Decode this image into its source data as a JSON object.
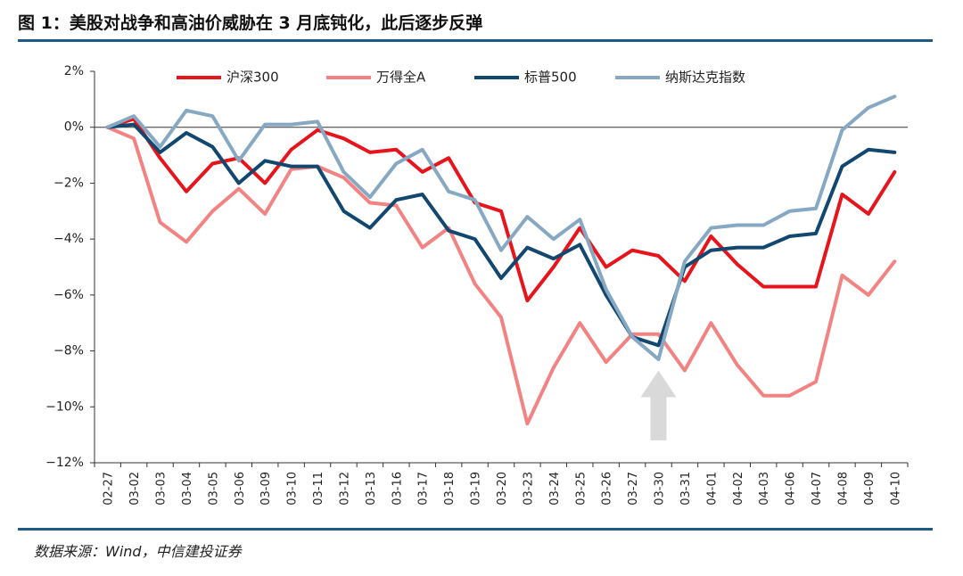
{
  "title": "图 1：美股对战争和高油价威胁在 3 月底钝化，此后逐步反弹",
  "source": "数据来源：Wind，中信建投证券",
  "colors": {
    "rule": "#1f5a87",
    "arrow": "#d9d9d9"
  },
  "chart_data": {
    "type": "line",
    "title": "图 1：美股对战争和高油价威胁在 3 月底钝化，此后逐步反弹",
    "xlabel": "",
    "ylabel": "",
    "ylim": [
      -12,
      2
    ],
    "yticks": [
      2,
      0,
      -2,
      -4,
      -6,
      -8,
      -10,
      -12
    ],
    "ytick_labels": [
      "2%",
      "0%",
      "−2%",
      "−4%",
      "−6%",
      "−8%",
      "−10%",
      "−12%"
    ],
    "legend_position": "top",
    "grid": false,
    "categories": [
      "02-27",
      "03-02",
      "03-03",
      "03-04",
      "03-05",
      "03-06",
      "03-09",
      "03-10",
      "03-11",
      "03-12",
      "03-13",
      "03-16",
      "03-17",
      "03-18",
      "03-19",
      "03-20",
      "03-23",
      "03-24",
      "03-25",
      "03-26",
      "03-27",
      "03-30",
      "03-31",
      "04-01",
      "04-02",
      "04-03",
      "04-06",
      "04-07",
      "04-08",
      "04-09",
      "04-10"
    ],
    "series": [
      {
        "name": "沪深300",
        "color": "#e8141b",
        "width": 4,
        "values": [
          0,
          0.3,
          -1.1,
          -2.3,
          -1.3,
          -1.1,
          -2.0,
          -0.8,
          -0.1,
          -0.4,
          -0.9,
          -0.8,
          -1.6,
          -1.1,
          -2.7,
          -3.0,
          -6.2,
          -5.0,
          -3.6,
          -5.0,
          -4.4,
          -4.6,
          -5.5,
          -3.9,
          -4.9,
          -5.7,
          -5.7,
          -5.7,
          -2.4,
          -3.1,
          -1.6
        ]
      },
      {
        "name": "万得全A",
        "color": "#f38383",
        "width": 4,
        "values": [
          0,
          -0.4,
          -3.4,
          -4.1,
          -3.0,
          -2.2,
          -3.1,
          -1.5,
          -1.4,
          -1.8,
          -2.7,
          -2.8,
          -4.3,
          -3.6,
          -5.6,
          -6.8,
          -10.6,
          -8.6,
          -7.0,
          -8.4,
          -7.4,
          -7.4,
          -8.7,
          -7.0,
          -8.5,
          -9.6,
          -9.6,
          -9.1,
          -5.3,
          -6.0,
          -4.8
        ]
      },
      {
        "name": "标普500",
        "color": "#12476f",
        "width": 4,
        "values": [
          0,
          0.1,
          -0.9,
          -0.2,
          -0.7,
          -2.0,
          -1.2,
          -1.4,
          -1.4,
          -3.0,
          -3.6,
          -2.6,
          -2.4,
          -3.7,
          -4.0,
          -5.4,
          -4.3,
          -4.7,
          -4.2,
          -6.0,
          -7.5,
          -7.8,
          -5.0,
          -4.4,
          -4.3,
          -4.3,
          -3.9,
          -3.8,
          -1.4,
          -0.8,
          -0.9
        ]
      },
      {
        "name": "纳斯达克指数",
        "color": "#86a8c2",
        "width": 4,
        "values": [
          0,
          0.4,
          -0.7,
          0.6,
          0.4,
          -1.2,
          0.1,
          0.1,
          0.2,
          -1.6,
          -2.5,
          -1.3,
          -0.8,
          -2.3,
          -2.6,
          -4.4,
          -3.2,
          -4.0,
          -3.3,
          -5.8,
          -7.5,
          -8.3,
          -4.8,
          -3.6,
          -3.5,
          -3.5,
          -3.0,
          -2.9,
          -0.1,
          0.7,
          1.1
        ]
      }
    ],
    "annotation": {
      "type": "up-arrow",
      "category": "03-30"
    }
  }
}
